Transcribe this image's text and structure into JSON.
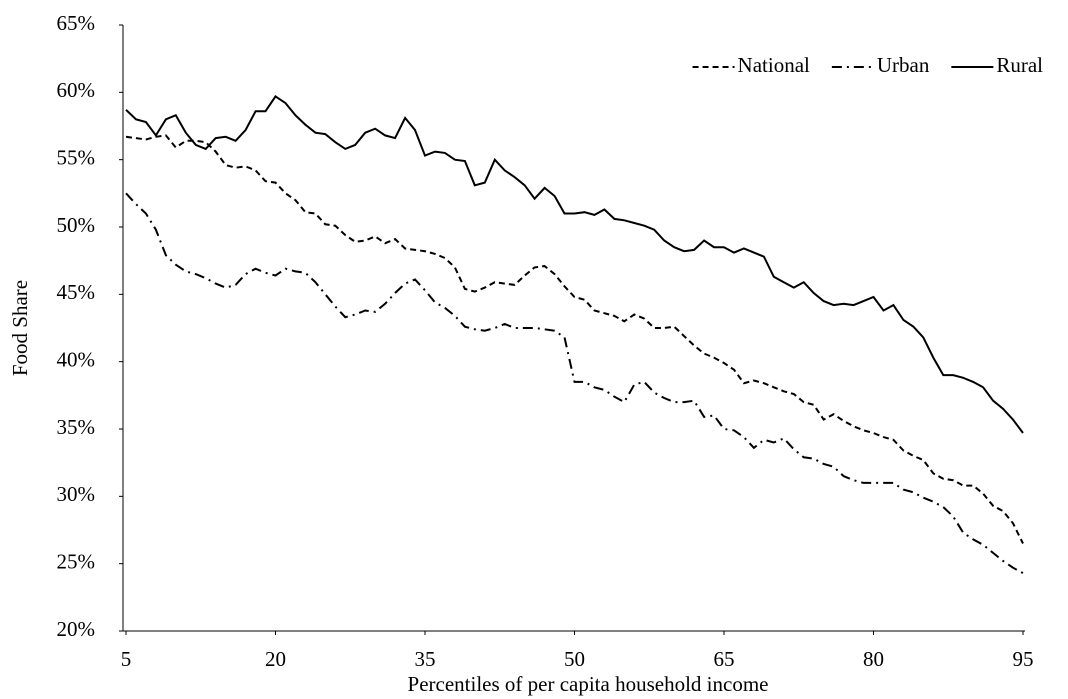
{
  "chart_data": {
    "type": "line",
    "y_label": "Food Share",
    "x_label": "Percentiles of per capita household income",
    "x": [
      5,
      6,
      7,
      8,
      9,
      10,
      11,
      12,
      13,
      14,
      15,
      16,
      17,
      18,
      19,
      20,
      21,
      22,
      23,
      24,
      25,
      26,
      27,
      28,
      29,
      30,
      31,
      32,
      33,
      34,
      35,
      36,
      37,
      38,
      39,
      40,
      41,
      42,
      43,
      44,
      45,
      46,
      47,
      48,
      49,
      50,
      51,
      52,
      53,
      54,
      55,
      56,
      57,
      58,
      59,
      60,
      61,
      62,
      63,
      64,
      65,
      66,
      67,
      68,
      69,
      70,
      71,
      72,
      73,
      74,
      75,
      76,
      77,
      78,
      79,
      80,
      81,
      82,
      83,
      84,
      85,
      86,
      87,
      88,
      89,
      90,
      91,
      92,
      93,
      94,
      95
    ],
    "series": [
      {
        "name": "National",
        "color": "#000000",
        "style": "dashed",
        "values": [
          56.7,
          56.6,
          56.5,
          56.7,
          56.8,
          55.9,
          56.4,
          56.4,
          56.3,
          55.6,
          54.6,
          54.4,
          54.5,
          54.2,
          53.4,
          53.3,
          52.5,
          52.0,
          51.1,
          51.0,
          50.2,
          50.1,
          49.4,
          48.9,
          49.0,
          49.3,
          48.8,
          49.1,
          48.4,
          48.3,
          48.2,
          48.0,
          47.7,
          47.0,
          45.4,
          45.2,
          45.5,
          45.9,
          45.8,
          45.7,
          46.4,
          47.0,
          47.1,
          46.5,
          45.6,
          44.8,
          44.6,
          43.8,
          43.6,
          43.4,
          43.0,
          43.5,
          43.2,
          42.5,
          42.5,
          42.6,
          41.9,
          41.2,
          40.6,
          40.3,
          39.9,
          39.4,
          38.4,
          38.6,
          38.4,
          38.1,
          37.8,
          37.6,
          37.0,
          36.8,
          35.7,
          36.1,
          35.6,
          35.2,
          34.9,
          34.7,
          34.4,
          34.2,
          33.4,
          33.0,
          32.7,
          31.7,
          31.3,
          31.2,
          30.8,
          30.8,
          30.2,
          29.3,
          28.9,
          28.0,
          26.5
        ]
      },
      {
        "name": "Urban",
        "color": "#000000",
        "style": "dashdot",
        "values": [
          52.5,
          51.7,
          51.0,
          49.8,
          47.9,
          47.2,
          46.7,
          46.5,
          46.2,
          45.8,
          45.5,
          45.7,
          46.5,
          46.9,
          46.6,
          46.4,
          46.9,
          46.7,
          46.6,
          45.9,
          45.0,
          44.1,
          43.3,
          43.5,
          43.8,
          43.7,
          44.3,
          45.1,
          45.8,
          46.1,
          45.3,
          44.4,
          44.0,
          43.4,
          42.6,
          42.4,
          42.3,
          42.5,
          42.8,
          42.5,
          42.5,
          42.5,
          42.4,
          42.3,
          41.8,
          38.5,
          38.5,
          38.1,
          37.9,
          37.4,
          37.0,
          38.3,
          38.5,
          37.7,
          37.3,
          37.0,
          37.0,
          37.1,
          35.9,
          36.0,
          35.0,
          34.9,
          34.4,
          33.6,
          34.2,
          34.0,
          34.3,
          33.5,
          32.9,
          32.8,
          32.4,
          32.2,
          31.5,
          31.2,
          31.0,
          31.0,
          31.0,
          31.0,
          30.5,
          30.3,
          29.9,
          29.6,
          29.2,
          28.5,
          27.3,
          26.8,
          26.4,
          25.8,
          25.2,
          24.7,
          24.3
        ]
      },
      {
        "name": "Rural",
        "color": "#000000",
        "style": "solid",
        "values": [
          58.7,
          58.0,
          57.8,
          56.8,
          58.0,
          58.3,
          57.0,
          56.1,
          55.8,
          56.6,
          56.7,
          56.4,
          57.2,
          58.6,
          58.6,
          59.7,
          59.2,
          58.3,
          57.6,
          57.0,
          56.9,
          56.3,
          55.8,
          56.1,
          57.0,
          57.3,
          56.8,
          56.6,
          58.1,
          57.2,
          55.3,
          55.6,
          55.5,
          55.0,
          54.9,
          53.1,
          53.3,
          55.0,
          54.2,
          53.7,
          53.1,
          52.1,
          52.9,
          52.3,
          51.0,
          51.0,
          51.1,
          50.9,
          51.3,
          50.6,
          50.5,
          50.3,
          50.1,
          49.8,
          49.0,
          48.5,
          48.2,
          48.3,
          49.0,
          48.5,
          48.5,
          48.1,
          48.4,
          48.1,
          47.8,
          46.3,
          45.9,
          45.5,
          45.9,
          45.1,
          44.5,
          44.2,
          44.3,
          44.2,
          44.5,
          44.8,
          43.8,
          44.2,
          43.1,
          42.6,
          41.8,
          40.3,
          39.0,
          39.0,
          38.8,
          38.5,
          38.1,
          37.1,
          36.5,
          35.7,
          34.7
        ]
      }
    ],
    "xlim": [
      5,
      95
    ],
    "xticks": [
      5,
      20,
      35,
      50,
      65,
      80,
      95
    ],
    "ylim": [
      20,
      65
    ],
    "yticks": [
      {
        "value": 20,
        "label": "20%"
      },
      {
        "value": 25,
        "label": "25%"
      },
      {
        "value": 30,
        "label": "30%"
      },
      {
        "value": 35,
        "label": "35%"
      },
      {
        "value": 40,
        "label": "40%"
      },
      {
        "value": 45,
        "label": "45%"
      },
      {
        "value": 50,
        "label": "50%"
      },
      {
        "value": 55,
        "label": "55%"
      },
      {
        "value": 60,
        "label": "60%"
      },
      {
        "value": 65,
        "label": "65%"
      }
    ],
    "legend": "top-right"
  }
}
